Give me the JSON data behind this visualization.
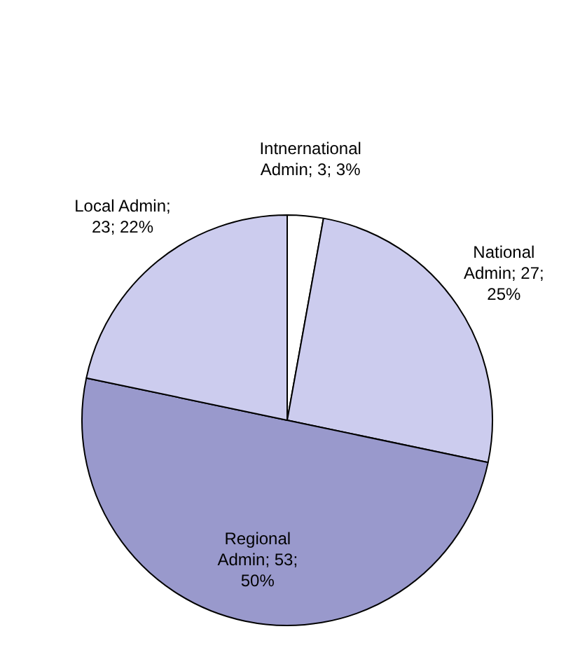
{
  "chart_data": {
    "type": "pie",
    "categories": [
      "Intnernational Admin",
      "National Admin",
      "Regional Admin",
      "Local Admin"
    ],
    "values": [
      3,
      27,
      53,
      23
    ],
    "colors": [
      "#ffffff",
      "#ccccee",
      "#9999cc",
      "#ccccee"
    ],
    "value_labels": [
      "; 3; 3%",
      "; 27; 25%",
      "; 53; 50%",
      "; 23; 22%"
    ],
    "legend": false
  }
}
